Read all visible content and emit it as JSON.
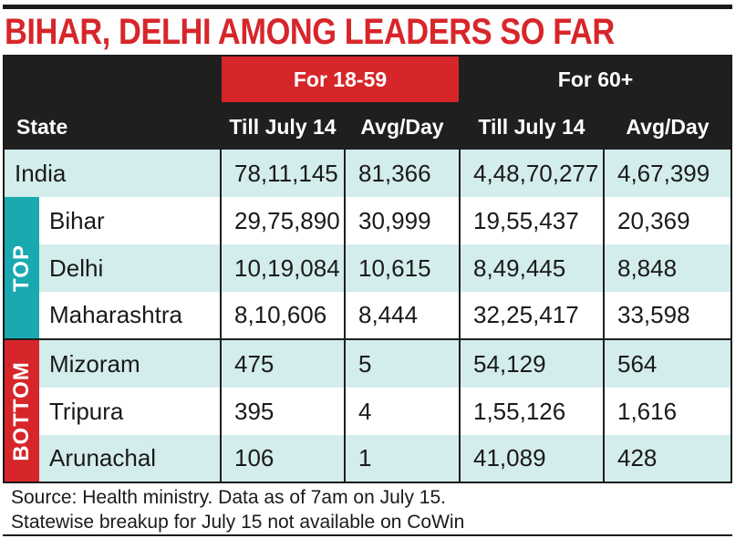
{
  "headline": "BIHAR, DELHI AMONG LEADERS SO FAR",
  "colors": {
    "accent_red": "#d7262a",
    "teal": "#d3ecec",
    "dark": "#1f1f1f",
    "sidebar_top": "#1aa9b0"
  },
  "header": {
    "state": "State",
    "group_18_59": "For 18-59",
    "group_60_plus": "For 60+",
    "till_label": "Till July 14",
    "avg_label": "Avg/Day"
  },
  "sidebar": {
    "top_label": "TOP",
    "bottom_label": "BOTTOM"
  },
  "rows": [
    {
      "state": "India",
      "till_18_59": "78,11,145",
      "avg_18_59": "81,366",
      "till_60": "4,48,70,277",
      "avg_60": "4,67,399"
    },
    {
      "state": "Bihar",
      "till_18_59": "29,75,890",
      "avg_18_59": "30,999",
      "till_60": "19,55,437",
      "avg_60": "20,369"
    },
    {
      "state": "Delhi",
      "till_18_59": "10,19,084",
      "avg_18_59": "10,615",
      "till_60": "8,49,445",
      "avg_60": "8,848"
    },
    {
      "state": "Maharashtra",
      "till_18_59": "8,10,606",
      "avg_18_59": "8,444",
      "till_60": "32,25,417",
      "avg_60": "33,598"
    },
    {
      "state": "Mizoram",
      "till_18_59": "475",
      "avg_18_59": "5",
      "till_60": "54,129",
      "avg_60": "564"
    },
    {
      "state": "Tripura",
      "till_18_59": "395",
      "avg_18_59": "4",
      "till_60": "1,55,126",
      "avg_60": "1,616"
    },
    {
      "state": "Arunachal",
      "till_18_59": "106",
      "avg_18_59": "1",
      "till_60": "41,089",
      "avg_60": "428"
    }
  ],
  "source": {
    "line1": "Source: Health ministry. Data as of 7am on July 15.",
    "line2": "Statewise breakup for July 15 not available on CoWin"
  }
}
